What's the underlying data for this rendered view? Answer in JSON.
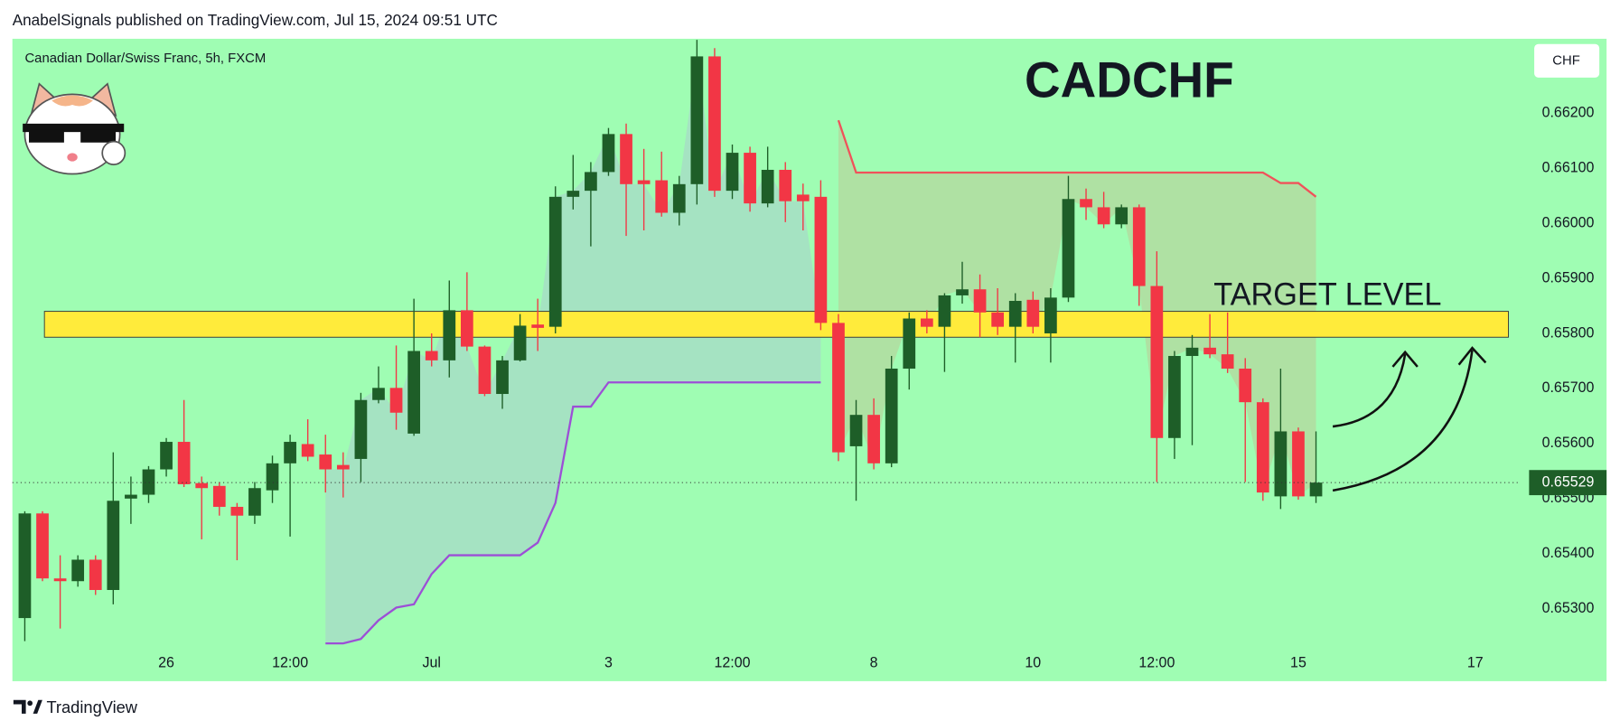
{
  "header": "AnabelSignals published on TradingView.com, Jul 15, 2024 09:51 UTC",
  "footer": {
    "brand": "TradingView"
  },
  "chart_data": {
    "type": "candlestick",
    "title": "CADCHF",
    "subtitle": "Canadian Dollar/Swiss Franc, 5h, FXCM",
    "currency": "CHF",
    "up_color": "#1e5e28",
    "down_color": "#f23645",
    "categories": [
      null,
      null,
      null,
      null,
      null,
      null,
      null,
      null,
      "26",
      null,
      null,
      null,
      null,
      null,
      null,
      "12:00",
      null,
      null,
      null,
      null,
      null,
      null,
      null,
      "Jul",
      null,
      null,
      null,
      null,
      null,
      null,
      null,
      null,
      null,
      "3",
      null,
      null,
      null,
      null,
      null,
      null,
      "12:00",
      null,
      null,
      null,
      null,
      null,
      null,
      null,
      "8",
      null,
      null,
      null,
      null,
      null,
      null,
      null,
      null,
      "10",
      null,
      null,
      null,
      null,
      null,
      null,
      "12:00",
      null,
      null,
      null,
      null,
      null,
      null,
      null,
      "15",
      null,
      null,
      null,
      null,
      null,
      null,
      null,
      null,
      null,
      "17",
      null
    ],
    "open": [
      0.65283,
      0.65473,
      0.65355,
      0.6535,
      0.65389,
      0.65334,
      0.655,
      0.65507,
      0.65553,
      0.65603,
      0.65528,
      0.65523,
      0.65485,
      0.65469,
      0.65515,
      0.65564,
      0.65599,
      0.6558,
      0.65561,
      0.65572,
      0.65679,
      0.65701,
      0.65618,
      0.65768,
      0.65751,
      0.65842,
      0.65776,
      0.6569,
      0.65751,
      0.65816,
      0.65812,
      0.66048,
      0.66059,
      0.66093,
      0.66162,
      0.66078,
      0.66078,
      0.66019,
      0.66071,
      0.66303,
      0.66059,
      0.66128,
      0.66036,
      0.66097,
      0.66052,
      0.66048,
      0.65819,
      0.65595,
      0.65652,
      0.65564,
      0.65736,
      0.65827,
      0.65812,
      0.65869,
      0.6588,
      0.65838,
      0.65812,
      0.65861,
      0.658,
      0.65865,
      0.66044,
      0.66029,
      0.65998,
      0.66029,
      0.65886,
      0.6561,
      0.65759,
      0.65774,
      0.65762,
      0.65736,
      0.65675,
      0.65504,
      0.65622,
      0.65504,
      null,
      null,
      null,
      null,
      null,
      null,
      null,
      null,
      null,
      null
    ],
    "high": [
      0.65477,
      0.65477,
      0.65397,
      0.65397,
      0.65397,
      0.65584,
      0.6554,
      0.65559,
      0.6561,
      0.65679,
      0.6554,
      0.6553,
      0.65492,
      0.6553,
      0.65578,
      0.65616,
      0.65644,
      0.65616,
      0.65584,
      0.65692,
      0.6574,
      0.65778,
      0.65863,
      0.658,
      0.65896,
      0.65911,
      0.65778,
      0.65759,
      0.65835,
      0.65863,
      0.66067,
      0.66124,
      0.66111,
      0.66173,
      0.66181,
      0.66135,
      0.6613,
      0.66086,
      0.66333,
      0.66318,
      0.66143,
      0.66139,
      0.66139,
      0.66111,
      0.66072,
      0.66078,
      0.65835,
      0.65679,
      0.65682,
      0.65759,
      0.65838,
      0.65842,
      0.65873,
      0.6593,
      0.65907,
      0.65882,
      0.65873,
      0.65876,
      0.65882,
      0.66086,
      0.66063,
      0.66057,
      0.66034,
      0.66034,
      0.65949,
      0.65768,
      0.65797,
      0.65835,
      0.65838,
      0.65755,
      0.65682,
      0.65736,
      0.65629,
      0.65622,
      null,
      null,
      null,
      null,
      null,
      null,
      null,
      null,
      null,
      null
    ],
    "low": [
      0.65241,
      0.6535,
      0.65264,
      0.6534,
      0.65325,
      0.65308,
      0.65454,
      0.65492,
      0.6554,
      0.65521,
      0.65426,
      0.65469,
      0.65388,
      0.65454,
      0.65492,
      0.65431,
      0.65568,
      0.65511,
      0.65502,
      0.6553,
      0.65673,
      0.65625,
      0.65614,
      0.6574,
      0.6572,
      0.65768,
      0.65686,
      0.65663,
      0.65749,
      0.65768,
      0.658,
      0.66025,
      0.65958,
      0.66086,
      0.65977,
      0.65987,
      0.66012,
      0.65996,
      0.66034,
      0.66048,
      0.66044,
      0.66021,
      0.66029,
      0.66002,
      0.65987,
      0.65806,
      0.65568,
      0.65496,
      0.65553,
      0.65557,
      0.65698,
      0.658,
      0.6573,
      0.65854,
      0.65793,
      0.65797,
      0.65747,
      0.658,
      0.65747,
      0.65857,
      0.66006,
      0.65991,
      0.65991,
      0.6585,
      0.6553,
      0.65572,
      0.65597,
      0.65755,
      0.65728,
      0.6553,
      0.65496,
      0.65481,
      0.65498,
      0.65492,
      null,
      null,
      null,
      null,
      null,
      null,
      null,
      null,
      null,
      null
    ],
    "close": [
      0.65473,
      0.65355,
      0.6535,
      0.65389,
      0.65334,
      0.65496,
      0.65507,
      0.65553,
      0.65603,
      0.65526,
      0.65519,
      0.65485,
      0.65469,
      0.65519,
      0.65564,
      0.65603,
      0.65576,
      0.65553,
      0.65553,
      0.65679,
      0.65701,
      0.65656,
      0.65768,
      0.65751,
      0.65842,
      0.65776,
      0.6569,
      0.65751,
      0.65814,
      0.6581,
      0.66048,
      0.66059,
      0.66093,
      0.66162,
      0.66071,
      0.66071,
      0.66019,
      0.66071,
      0.66303,
      0.66059,
      0.66128,
      0.66036,
      0.66097,
      0.6604,
      0.6604,
      0.65819,
      0.65584,
      0.65652,
      0.65564,
      0.65736,
      0.65827,
      0.65812,
      0.65869,
      0.6588,
      0.65838,
      0.65812,
      0.65859,
      0.65812,
      0.65865,
      0.66044,
      0.66029,
      0.65998,
      0.66029,
      0.65886,
      0.6561,
      0.65759,
      0.65774,
      0.65762,
      0.65736,
      0.65675,
      0.65511,
      0.65622,
      0.65504,
      0.65529,
      null,
      null,
      null,
      null,
      null,
      null,
      null,
      null,
      null,
      null
    ],
    "lower_band": {
      "color": "#9c4fd6",
      "fill": "#a6dec4",
      "values": [
        null,
        null,
        null,
        null,
        null,
        null,
        null,
        null,
        null,
        null,
        null,
        null,
        null,
        null,
        null,
        null,
        null,
        0.65237,
        0.65237,
        0.65245,
        0.65279,
        0.65302,
        0.65308,
        0.65363,
        0.65397,
        0.65397,
        0.65397,
        0.65397,
        0.65397,
        0.6542,
        0.65492,
        0.65667,
        0.65667,
        0.65711,
        0.65711,
        0.65711,
        0.65711,
        0.65711,
        0.65711,
        0.65711,
        0.65711,
        0.65711,
        0.65711,
        0.65711,
        0.65711,
        0.65711,
        null,
        null,
        null,
        null,
        null,
        null,
        null,
        null,
        null,
        null,
        null,
        null,
        null,
        null,
        null,
        null,
        null,
        null,
        null,
        null,
        null,
        null,
        null,
        null,
        null,
        null,
        null,
        null,
        null,
        null,
        null,
        null,
        null,
        null,
        null,
        null,
        null,
        null
      ]
    },
    "upper_band": {
      "color": "#f0525a",
      "fill": "#b2dca0",
      "values": [
        null,
        null,
        null,
        null,
        null,
        null,
        null,
        null,
        null,
        null,
        null,
        null,
        null,
        null,
        null,
        null,
        null,
        null,
        null,
        null,
        null,
        null,
        null,
        null,
        null,
        null,
        null,
        null,
        null,
        null,
        null,
        null,
        null,
        null,
        null,
        null,
        null,
        null,
        null,
        null,
        null,
        null,
        null,
        null,
        null,
        null,
        0.66187,
        0.66092,
        0.66092,
        0.66092,
        0.66092,
        0.66092,
        0.66092,
        0.66092,
        0.66092,
        0.66092,
        0.66092,
        0.66092,
        0.66092,
        0.66092,
        0.66092,
        0.66092,
        0.66092,
        0.66092,
        0.66092,
        0.66092,
        0.66092,
        0.66092,
        0.66092,
        0.66092,
        0.66092,
        0.66073,
        0.66073,
        0.66048,
        null,
        null,
        null,
        null,
        null,
        null,
        null,
        null,
        null,
        null
      ]
    },
    "zone": {
      "label": "TARGET LEVEL",
      "low": 0.65793,
      "high": 0.6584,
      "color": "#ffeb3b"
    },
    "last_price": 0.65529,
    "ylim": [
      0.65235,
      0.66335
    ],
    "yticks": [
      {
        "value": 0.653,
        "label": "0.65300"
      },
      {
        "value": 0.654,
        "label": "0.65400"
      },
      {
        "value": 0.655,
        "label": "0.65500"
      },
      {
        "value": 0.656,
        "label": "0.65600"
      },
      {
        "value": 0.657,
        "label": "0.65700"
      },
      {
        "value": 0.658,
        "label": "0.65800"
      },
      {
        "value": 0.659,
        "label": "0.65900"
      },
      {
        "value": 0.66,
        "label": "0.66000"
      },
      {
        "value": 0.661,
        "label": "0.66100"
      },
      {
        "value": 0.662,
        "label": "0.66200"
      }
    ]
  }
}
